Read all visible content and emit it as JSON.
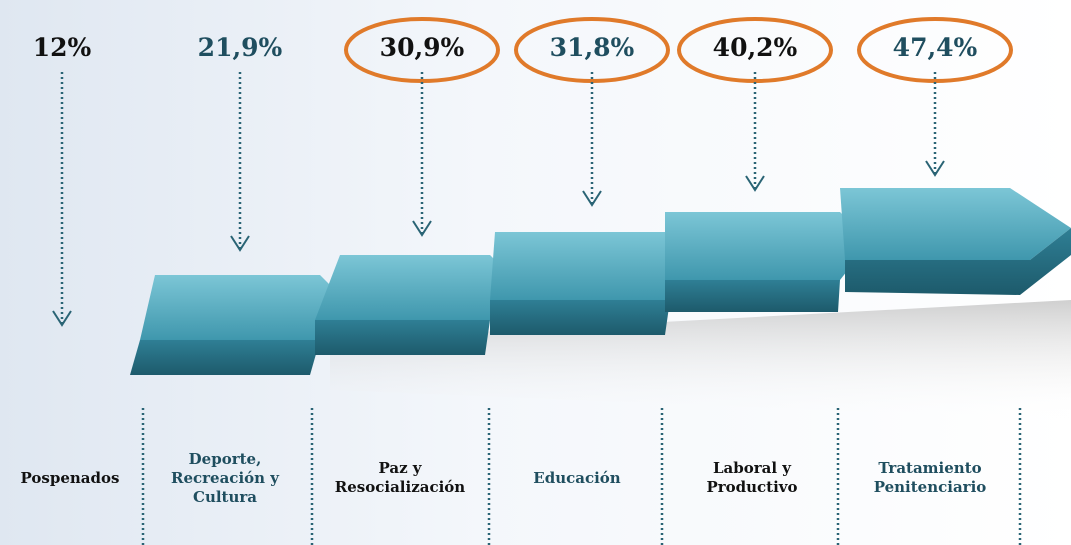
{
  "items": [
    {
      "value": "12%",
      "label": "Pospenados",
      "color": "#111111"
    },
    {
      "value": "21,9%",
      "label": "Deporte, Recreación y Cultura",
      "color": "#1f4e5f"
    },
    {
      "value": "30,9%",
      "label": "Paz y Resocialización",
      "color": "#111111"
    },
    {
      "value": "31,8%",
      "label": "Educación",
      "color": "#1f4e5f"
    },
    {
      "value": "40,2%",
      "label": "Laboral y Productivo",
      "color": "#111111"
    },
    {
      "value": "47,4%",
      "label": "Tratamiento Penitenciario",
      "color": "#1f4e5f"
    }
  ]
}
